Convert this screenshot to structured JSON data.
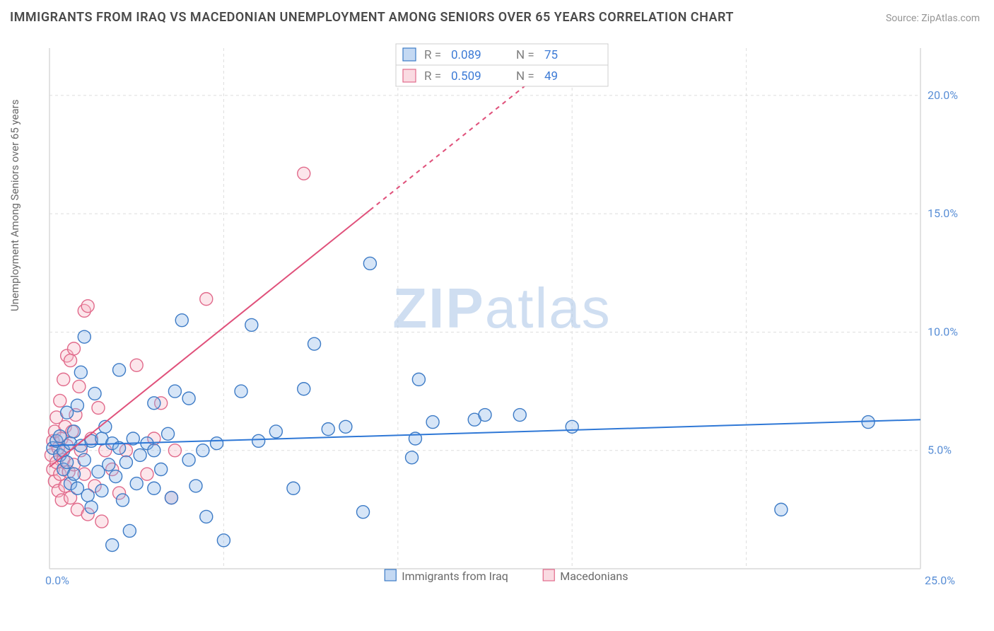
{
  "title": "IMMIGRANTS FROM IRAQ VS MACEDONIAN UNEMPLOYMENT AMONG SENIORS OVER 65 YEARS CORRELATION CHART",
  "source": "Source: ZipAtlas.com",
  "ylabel": "Unemployment Among Seniors over 65 years",
  "watermark_a": "ZIP",
  "watermark_b": "atlas",
  "chart": {
    "type": "scatter",
    "background": "#ffffff",
    "axis_color": "#d9d9d9",
    "grid_color": "#dddddd",
    "grid_dash": "4 4",
    "tick_label_color": "#5a8fd6",
    "tick_fontsize": 16,
    "xlim": [
      0,
      25
    ],
    "ylim": [
      0,
      22
    ],
    "xticks": [
      0,
      25
    ],
    "xtick_labels": [
      "0.0%",
      "25.0%"
    ],
    "ytick_values": [
      5,
      10,
      15,
      20
    ],
    "ytick_labels": [
      "5.0%",
      "10.0%",
      "15.0%",
      "20.0%"
    ],
    "y_grid_values": [
      5,
      10,
      15,
      20
    ],
    "x_grid_step": 5,
    "marker_radius": 9,
    "marker_stroke_width": 1.4,
    "marker_fill_opacity": 0.35,
    "trend_line_width": 2
  },
  "series": {
    "iraq": {
      "label": "Immigrants from Iraq",
      "fill": "#8ab4e8",
      "stroke": "#3d7bc6",
      "line_color": "#2f78d6",
      "trend": {
        "x1": 0,
        "y1": 5.2,
        "x2": 25,
        "y2": 6.3
      },
      "R": "0.089",
      "N": "75",
      "points": [
        [
          0.1,
          5.1
        ],
        [
          0.2,
          5.4
        ],
        [
          0.3,
          4.8
        ],
        [
          0.3,
          5.6
        ],
        [
          0.4,
          4.2
        ],
        [
          0.4,
          5.0
        ],
        [
          0.5,
          6.6
        ],
        [
          0.5,
          4.5
        ],
        [
          0.6,
          5.3
        ],
        [
          0.6,
          3.6
        ],
        [
          0.7,
          5.8
        ],
        [
          0.7,
          4.0
        ],
        [
          0.8,
          6.9
        ],
        [
          0.8,
          3.4
        ],
        [
          0.9,
          5.2
        ],
        [
          0.9,
          8.3
        ],
        [
          1.0,
          4.6
        ],
        [
          1.0,
          9.8
        ],
        [
          1.1,
          3.1
        ],
        [
          1.2,
          5.4
        ],
        [
          1.2,
          2.6
        ],
        [
          1.3,
          7.4
        ],
        [
          1.4,
          4.1
        ],
        [
          1.5,
          5.5
        ],
        [
          1.5,
          3.3
        ],
        [
          1.6,
          6.0
        ],
        [
          1.7,
          4.4
        ],
        [
          1.8,
          1.0
        ],
        [
          1.8,
          5.3
        ],
        [
          1.9,
          3.9
        ],
        [
          2.0,
          8.4
        ],
        [
          2.0,
          5.1
        ],
        [
          2.1,
          2.9
        ],
        [
          2.2,
          4.5
        ],
        [
          2.3,
          1.6
        ],
        [
          2.4,
          5.5
        ],
        [
          2.5,
          3.6
        ],
        [
          2.6,
          4.8
        ],
        [
          2.8,
          5.3
        ],
        [
          3.0,
          3.4
        ],
        [
          3.0,
          5.0
        ],
        [
          3.0,
          7.0
        ],
        [
          3.2,
          4.2
        ],
        [
          3.4,
          5.7
        ],
        [
          3.5,
          3.0
        ],
        [
          3.6,
          7.5
        ],
        [
          3.8,
          10.5
        ],
        [
          4.0,
          4.6
        ],
        [
          4.0,
          7.2
        ],
        [
          4.2,
          3.5
        ],
        [
          4.4,
          5.0
        ],
        [
          4.5,
          2.2
        ],
        [
          4.8,
          5.3
        ],
        [
          5.0,
          1.2
        ],
        [
          5.5,
          7.5
        ],
        [
          5.8,
          10.3
        ],
        [
          6.0,
          5.4
        ],
        [
          6.5,
          5.8
        ],
        [
          7.0,
          3.4
        ],
        [
          7.3,
          7.6
        ],
        [
          7.6,
          9.5
        ],
        [
          8.0,
          5.9
        ],
        [
          8.5,
          6.0
        ],
        [
          9.0,
          2.4
        ],
        [
          9.2,
          12.9
        ],
        [
          10.4,
          4.7
        ],
        [
          10.5,
          5.5
        ],
        [
          10.6,
          8.0
        ],
        [
          11.0,
          6.2
        ],
        [
          12.2,
          6.3
        ],
        [
          12.5,
          6.5
        ],
        [
          13.5,
          6.5
        ],
        [
          15.0,
          6.0
        ],
        [
          21.0,
          2.5
        ],
        [
          23.5,
          6.2
        ]
      ]
    },
    "mac": {
      "label": "Macedonians",
      "fill": "#f5b7c5",
      "stroke": "#e16a8b",
      "line_color": "#e0517b",
      "trend": {
        "x1": 0,
        "y1": 4.3,
        "x2": 15,
        "y2": 22.0
      },
      "trend_solid_until_x": 9.2,
      "R": "0.509",
      "N": "49",
      "points": [
        [
          0.05,
          4.8
        ],
        [
          0.1,
          5.4
        ],
        [
          0.1,
          4.2
        ],
        [
          0.15,
          5.8
        ],
        [
          0.15,
          3.7
        ],
        [
          0.2,
          6.4
        ],
        [
          0.2,
          4.5
        ],
        [
          0.25,
          5.1
        ],
        [
          0.25,
          3.3
        ],
        [
          0.3,
          7.1
        ],
        [
          0.3,
          4.0
        ],
        [
          0.35,
          5.5
        ],
        [
          0.35,
          2.9
        ],
        [
          0.4,
          8.0
        ],
        [
          0.4,
          4.6
        ],
        [
          0.45,
          6.0
        ],
        [
          0.45,
          3.5
        ],
        [
          0.5,
          9.0
        ],
        [
          0.5,
          5.2
        ],
        [
          0.55,
          4.1
        ],
        [
          0.6,
          8.8
        ],
        [
          0.6,
          3.0
        ],
        [
          0.65,
          5.8
        ],
        [
          0.7,
          9.3
        ],
        [
          0.7,
          4.4
        ],
        [
          0.75,
          6.5
        ],
        [
          0.8,
          2.5
        ],
        [
          0.85,
          7.7
        ],
        [
          0.9,
          5.0
        ],
        [
          1.0,
          10.9
        ],
        [
          1.0,
          4.0
        ],
        [
          1.1,
          11.1
        ],
        [
          1.1,
          2.3
        ],
        [
          1.2,
          5.5
        ],
        [
          1.3,
          3.5
        ],
        [
          1.4,
          6.8
        ],
        [
          1.5,
          2.0
        ],
        [
          1.6,
          5.0
        ],
        [
          1.8,
          4.2
        ],
        [
          2.0,
          3.2
        ],
        [
          2.2,
          5.0
        ],
        [
          2.5,
          8.6
        ],
        [
          2.8,
          4.0
        ],
        [
          3.0,
          5.5
        ],
        [
          3.2,
          7.0
        ],
        [
          3.5,
          3.0
        ],
        [
          3.6,
          5.0
        ],
        [
          4.5,
          11.4
        ],
        [
          7.3,
          16.7
        ]
      ]
    }
  },
  "stats_box": {
    "border": "#cfcfcf",
    "bg": "#ffffff",
    "label_color": "#808080",
    "value_color": "#3d7bd6",
    "fontsize": 17
  },
  "bottom_legend": {
    "border": "#cfcfcf",
    "text_color": "#6a6a6a",
    "fontsize": 16,
    "sq_size": 16
  }
}
